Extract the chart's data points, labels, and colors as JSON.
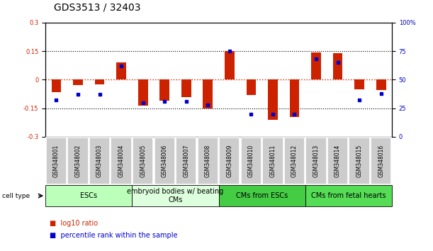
{
  "title": "GDS3513 / 32403",
  "samples": [
    "GSM348001",
    "GSM348002",
    "GSM348003",
    "GSM348004",
    "GSM348005",
    "GSM348006",
    "GSM348007",
    "GSM348008",
    "GSM348009",
    "GSM348010",
    "GSM348011",
    "GSM348012",
    "GSM348013",
    "GSM348014",
    "GSM348015",
    "GSM348016"
  ],
  "log10_ratio": [
    -0.065,
    -0.03,
    -0.025,
    0.09,
    -0.135,
    -0.11,
    -0.09,
    -0.15,
    0.15,
    -0.08,
    -0.21,
    -0.195,
    0.143,
    0.14,
    -0.05,
    -0.055
  ],
  "percentile_rank": [
    32,
    37,
    37,
    62,
    30,
    31,
    31,
    28,
    75,
    20,
    20,
    20,
    68,
    65,
    32,
    38
  ],
  "ylim": [
    -0.3,
    0.3
  ],
  "yticks_left": [
    -0.3,
    -0.15,
    0,
    0.15,
    0.3
  ],
  "yticks_right_pct": [
    0,
    25,
    50,
    75,
    100
  ],
  "bar_color": "#cc2200",
  "dot_color": "#0000cc",
  "hline_color": "#cc2200",
  "cell_groups": [
    {
      "label": "ESCs",
      "start": 0,
      "end": 3,
      "color": "#bbffbb"
    },
    {
      "label": "embryoid bodies w/ beating\nCMs",
      "start": 4,
      "end": 7,
      "color": "#ddffdd"
    },
    {
      "label": "CMs from ESCs",
      "start": 8,
      "end": 11,
      "color": "#44cc44"
    },
    {
      "label": "CMs from fetal hearts",
      "start": 12,
      "end": 15,
      "color": "#55dd55"
    }
  ],
  "bar_width": 0.45,
  "dot_size": 18,
  "title_fontsize": 10,
  "tick_fontsize": 6,
  "sample_fontsize": 5.5,
  "cell_fontsize": 7
}
